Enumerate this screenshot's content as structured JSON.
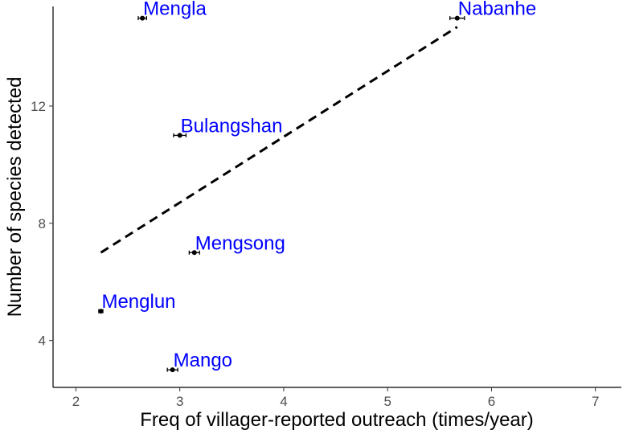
{
  "chart_data": {
    "type": "scatter",
    "title": "",
    "xlabel": "Freq of villager-reported outreach (times/year)",
    "ylabel": "Number of species detected",
    "xlim": [
      1.78,
      7.25
    ],
    "ylim": [
      2.4,
      15.4
    ],
    "x_ticks": [
      2,
      3,
      4,
      5,
      6,
      7
    ],
    "y_ticks": [
      4,
      8,
      12
    ],
    "x_tick_labels": [
      "2",
      "3",
      "4",
      "5",
      "6",
      "7"
    ],
    "y_tick_labels": [
      "4",
      "8",
      "12"
    ],
    "grid": false,
    "point_color": "#000000",
    "label_color": "#0000ff",
    "points": [
      {
        "label": "Mengla",
        "x": 2.64,
        "y": 15,
        "x_err": 0.04
      },
      {
        "label": "Nabanhe",
        "x": 5.67,
        "y": 15,
        "x_err": 0.07
      },
      {
        "label": "Bulangshan",
        "x": 3.0,
        "y": 11,
        "x_err": 0.06
      },
      {
        "label": "Mengsong",
        "x": 3.14,
        "y": 7,
        "x_err": 0.05
      },
      {
        "label": "Menglun",
        "x": 2.24,
        "y": 5,
        "x_err": 0.02
      },
      {
        "label": "Mango",
        "x": 2.93,
        "y": 3,
        "x_err": 0.05
      }
    ],
    "trend_line": {
      "style": "dashed",
      "x": [
        2.24,
        5.67
      ],
      "y": [
        7.0,
        14.7
      ]
    }
  }
}
